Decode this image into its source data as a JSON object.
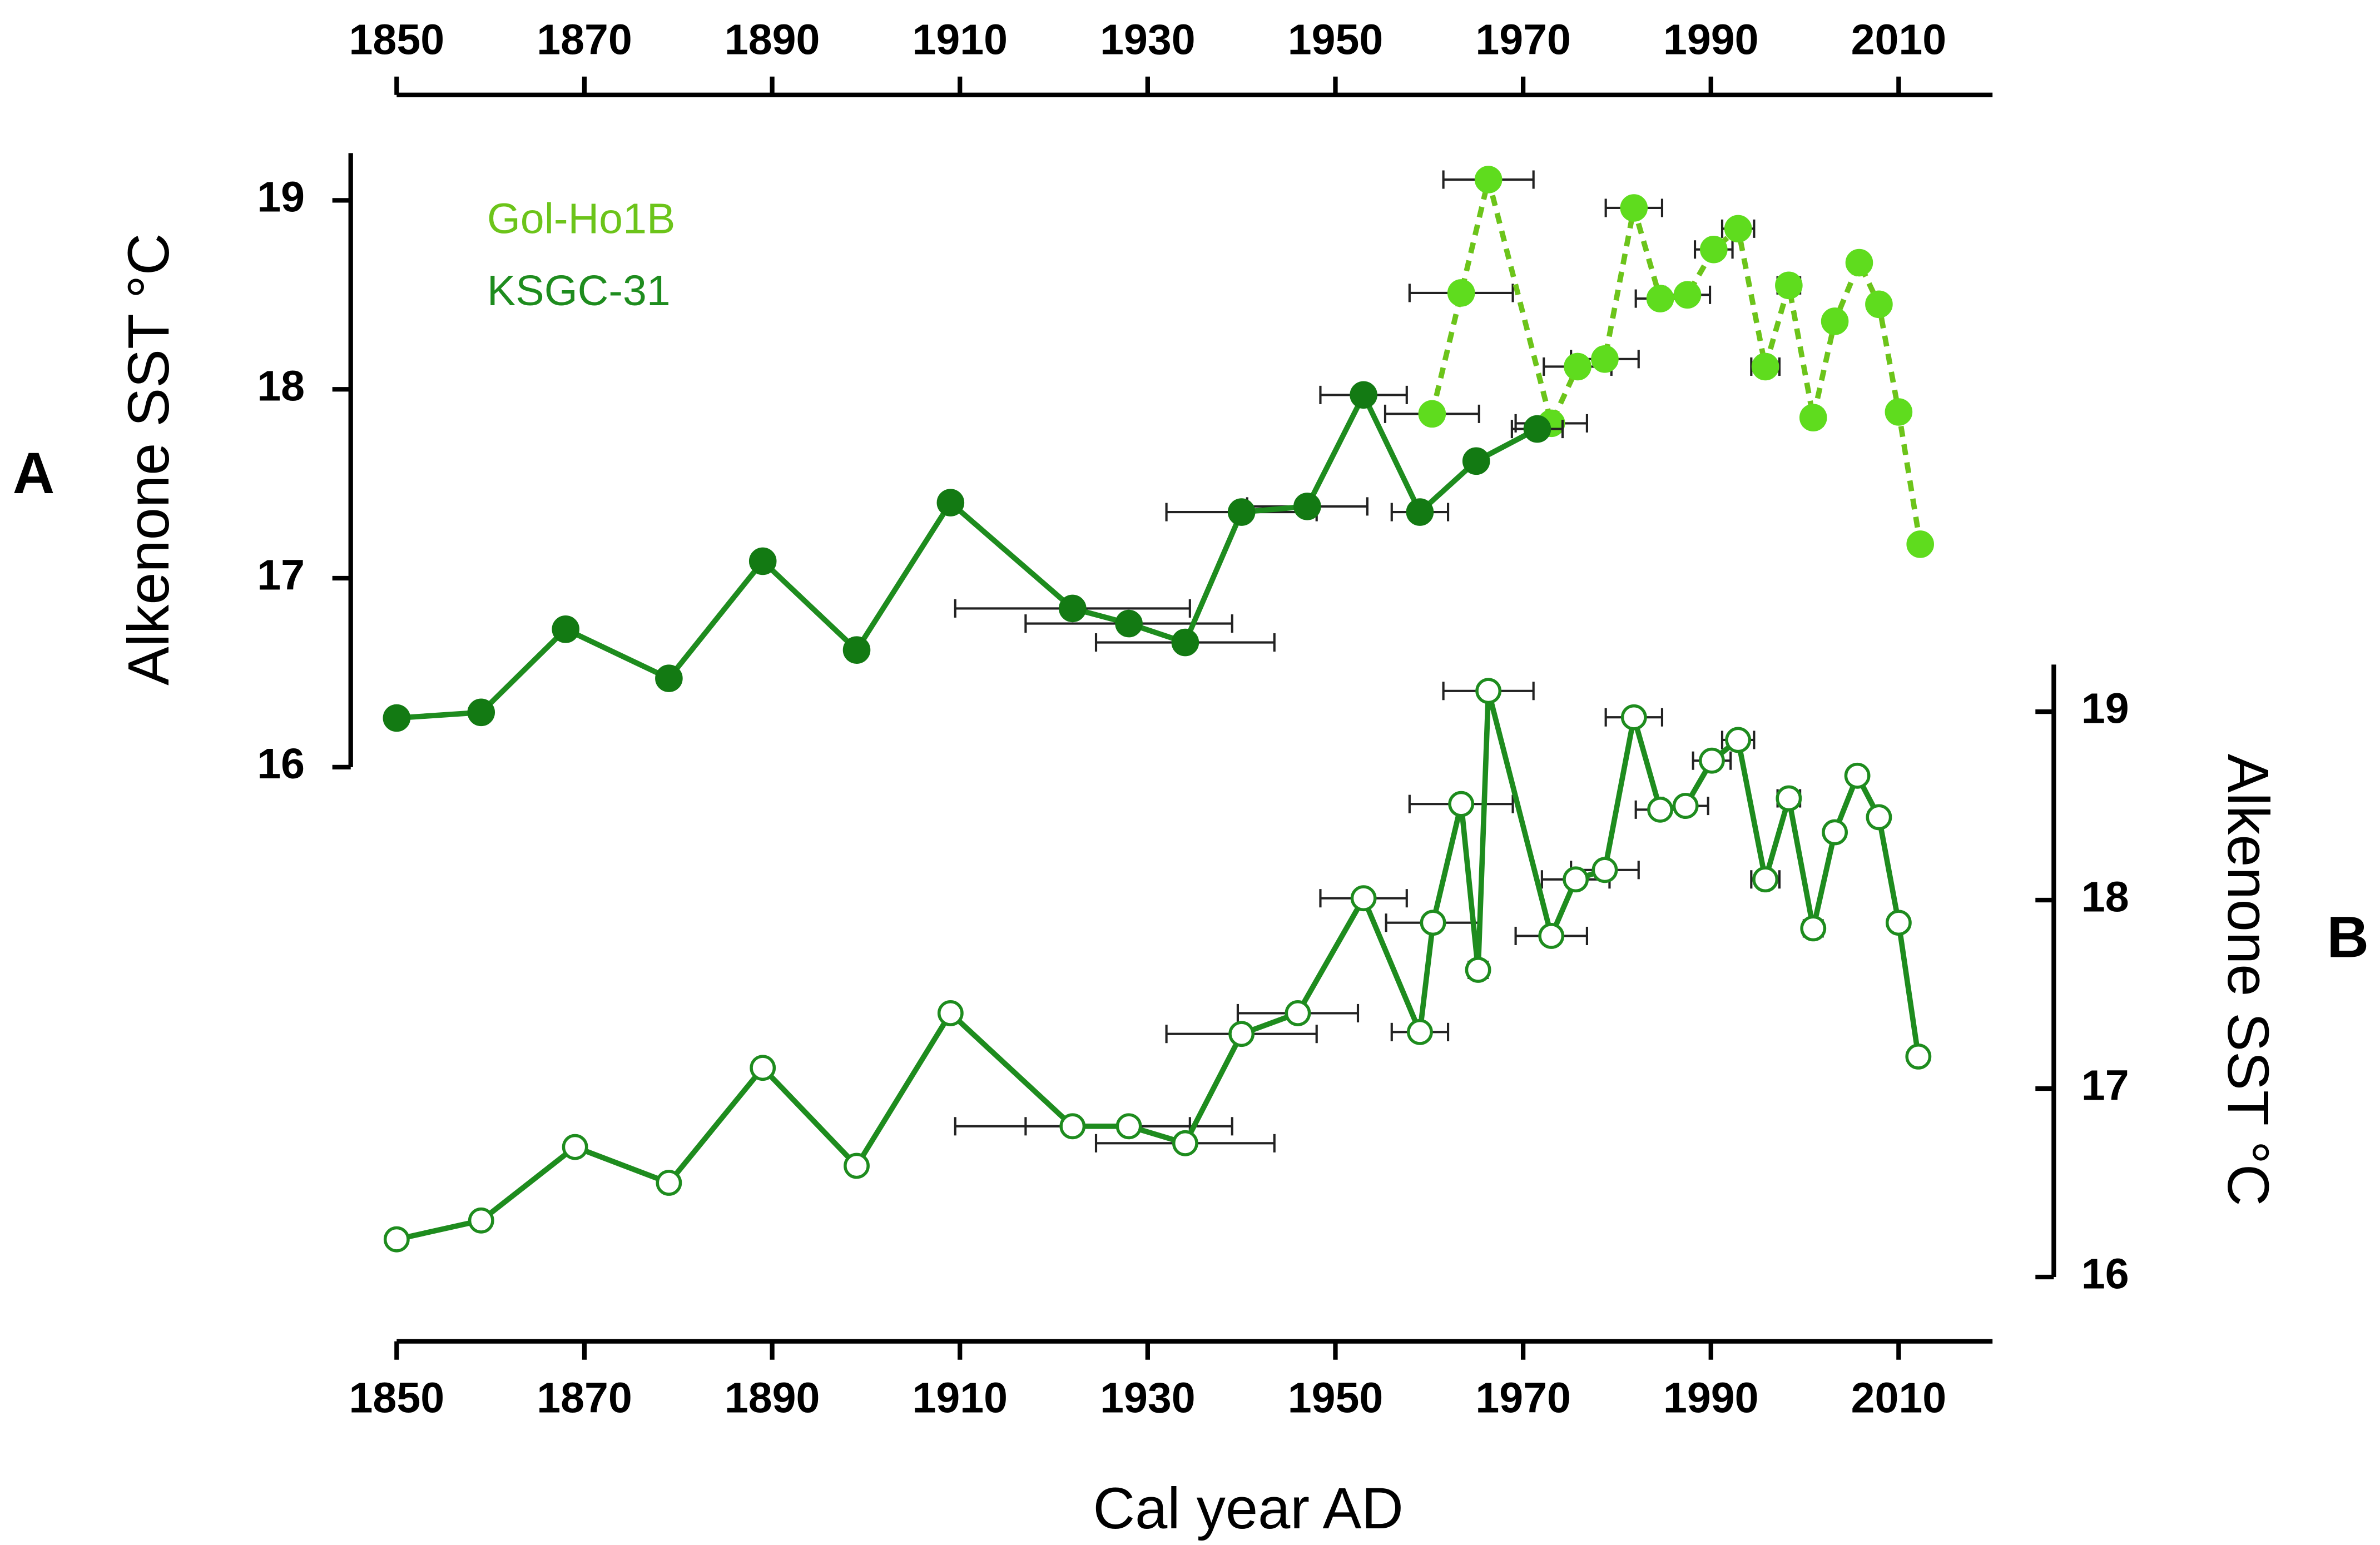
{
  "chart_data": [
    {
      "type": "line",
      "panel_label": "A",
      "ylabel": "Alkenone SST °C",
      "x_axis_position": "top",
      "y_axis_position": "left",
      "xlim": [
        1850,
        2020
      ],
      "xticks": [
        1850,
        1870,
        1890,
        1910,
        1930,
        1950,
        1970,
        1990,
        2010
      ],
      "ylim": [
        16,
        19.25
      ],
      "yticks": [
        16,
        17,
        18,
        19
      ],
      "legend": "upper left",
      "series": [
        {
          "name": "Gol-Ho1B",
          "color": "#6cc41a",
          "marker_color": "#5fdc1e",
          "dashed": true,
          "marker": "filled",
          "x": [
            1960.3,
            1963.4,
            1966.3,
            1973,
            1975.8,
            1978.7,
            1981.8,
            1984.6,
            1987.5,
            1990.3,
            1992.9,
            1995.8,
            1998.3,
            2000.9,
            2003.2,
            2005.8,
            2007.9,
            2010,
            2012.3
          ],
          "values": [
            17.87,
            18.51,
            19.11,
            17.82,
            18.12,
            18.16,
            18.96,
            18.48,
            18.5,
            18.74,
            18.85,
            18.12,
            18.55,
            17.85,
            18.36,
            18.67,
            18.45,
            17.88,
            17.18
          ],
          "xerr": [
            5,
            5.5,
            4.8,
            3.8,
            3.6,
            3.6,
            3,
            2.6,
            2.4,
            2,
            1.7,
            1.5,
            1.2,
            1,
            0.8,
            0.5,
            0.4,
            null,
            null
          ]
        },
        {
          "name": "KSGC-31",
          "color": "#1e8c1e",
          "marker_color": "#137a13",
          "dashed": false,
          "marker": "filled",
          "x": [
            1850,
            1859,
            1868,
            1879,
            1889,
            1899,
            1909,
            1922,
            1928,
            1934,
            1940,
            1947,
            1953,
            1959,
            1965,
            1971.5
          ],
          "values": [
            16.26,
            16.29,
            16.73,
            16.47,
            17.09,
            16.62,
            17.4,
            16.84,
            16.76,
            16.66,
            17.35,
            17.38,
            17.97,
            17.35,
            17.62,
            17.79
          ],
          "xerr": [
            null,
            null,
            null,
            null,
            null,
            null,
            null,
            12.5,
            11,
            9.5,
            8,
            6.4,
            4.6,
            3,
            null,
            2.7
          ]
        }
      ]
    },
    {
      "type": "line",
      "panel_label": "B",
      "ylabel": "Alkenone SST °C",
      "xlabel": "Cal year AD",
      "x_axis_position": "bottom",
      "y_axis_position": "right",
      "xlim": [
        1850,
        2020
      ],
      "xticks": [
        1850,
        1870,
        1890,
        1910,
        1930,
        1950,
        1970,
        1990,
        2010
      ],
      "ylim": [
        16,
        19.25
      ],
      "yticks": [
        16,
        17,
        18,
        19
      ],
      "series": [
        {
          "color": "#1e8c1e",
          "marker_color": "#1e8c1e",
          "dashed": false,
          "marker": "open",
          "x": [
            1850,
            1859,
            1869,
            1879,
            1889,
            1899,
            1909,
            1922,
            1928,
            1934,
            1940,
            1946,
            1953,
            1959,
            1960.4,
            1963.4,
            1965.2,
            1966.3,
            1973,
            1975.6,
            1978.7,
            1981.8,
            1984.6,
            1987.3,
            1990.1,
            1992.9,
            1995.8,
            1998.3,
            2000.9,
            2003.2,
            2005.6,
            2007.9,
            2010,
            2012.1
          ],
          "values": [
            16.2,
            16.3,
            16.69,
            16.5,
            17.11,
            16.59,
            17.4,
            16.8,
            16.8,
            16.71,
            17.29,
            17.4,
            18.01,
            17.3,
            17.88,
            18.51,
            17.63,
            19.11,
            17.81,
            18.11,
            18.16,
            18.97,
            18.48,
            18.5,
            18.74,
            18.85,
            18.11,
            18.54,
            17.85,
            18.36,
            18.66,
            18.44,
            17.88,
            17.17
          ],
          "xerr": [
            null,
            null,
            null,
            null,
            null,
            null,
            null,
            12.5,
            11,
            9.5,
            8,
            6.4,
            4.6,
            3,
            5,
            5.5,
            1,
            4.8,
            3.8,
            3.6,
            3.6,
            3,
            2.6,
            2.4,
            2,
            1.7,
            1.5,
            1.2,
            1,
            0.8,
            0.5,
            0.4,
            null,
            null
          ]
        }
      ]
    }
  ]
}
